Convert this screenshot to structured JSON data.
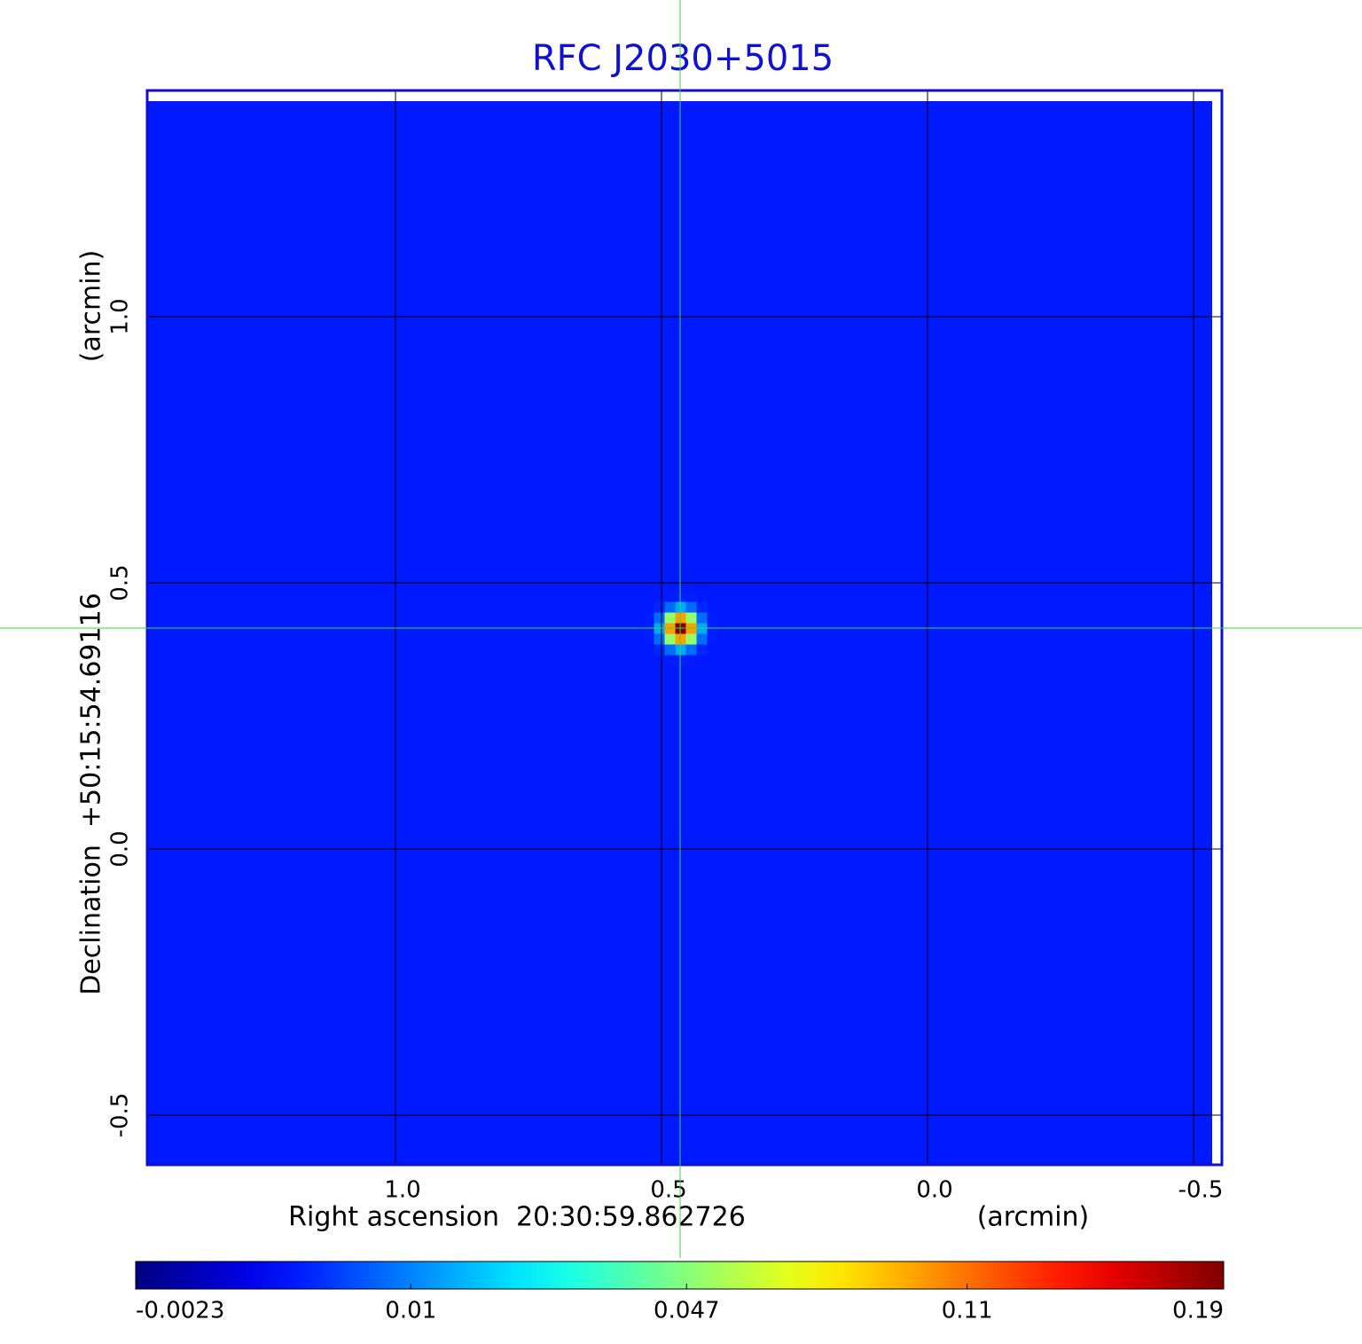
{
  "chart_data": {
    "type": "image",
    "title": "RFC J2030+5015",
    "xlabel": "Right ascension  20:30:59.862726",
    "xunit": "(arcmin)",
    "ylabel": "Declination  +50:15:54.69116",
    "yunit": "(arcmin)",
    "xlim": [
      1.4667,
      -0.5533
    ],
    "ylim": [
      -0.5933,
      1.425
    ],
    "xticks": [
      {
        "value": 1,
        "label": "1.0"
      },
      0.5,
      {
        "value": 0,
        "label": "0.0"
      },
      -0.5
    ],
    "yticks": [
      {
        "value": -0.5,
        "label": "-0.5"
      },
      {
        "value": 0,
        "label": "0.0"
      },
      0.5,
      {
        "value": 1,
        "label": "1.0"
      }
    ],
    "grid": true,
    "colormap": "jet",
    "color_scale": "sqrt",
    "clim": [
      -0.0023,
      0.19
    ],
    "colorbar_ticks": [
      -0.0023,
      0.01,
      0.047,
      0.11,
      0.19
    ],
    "background": 0.002,
    "source": {
      "x": 0.465,
      "y": 0.415,
      "peak": 0.19,
      "fwhm": 0.04
    },
    "crosshair": [
      0.465,
      0.415
    ]
  }
}
